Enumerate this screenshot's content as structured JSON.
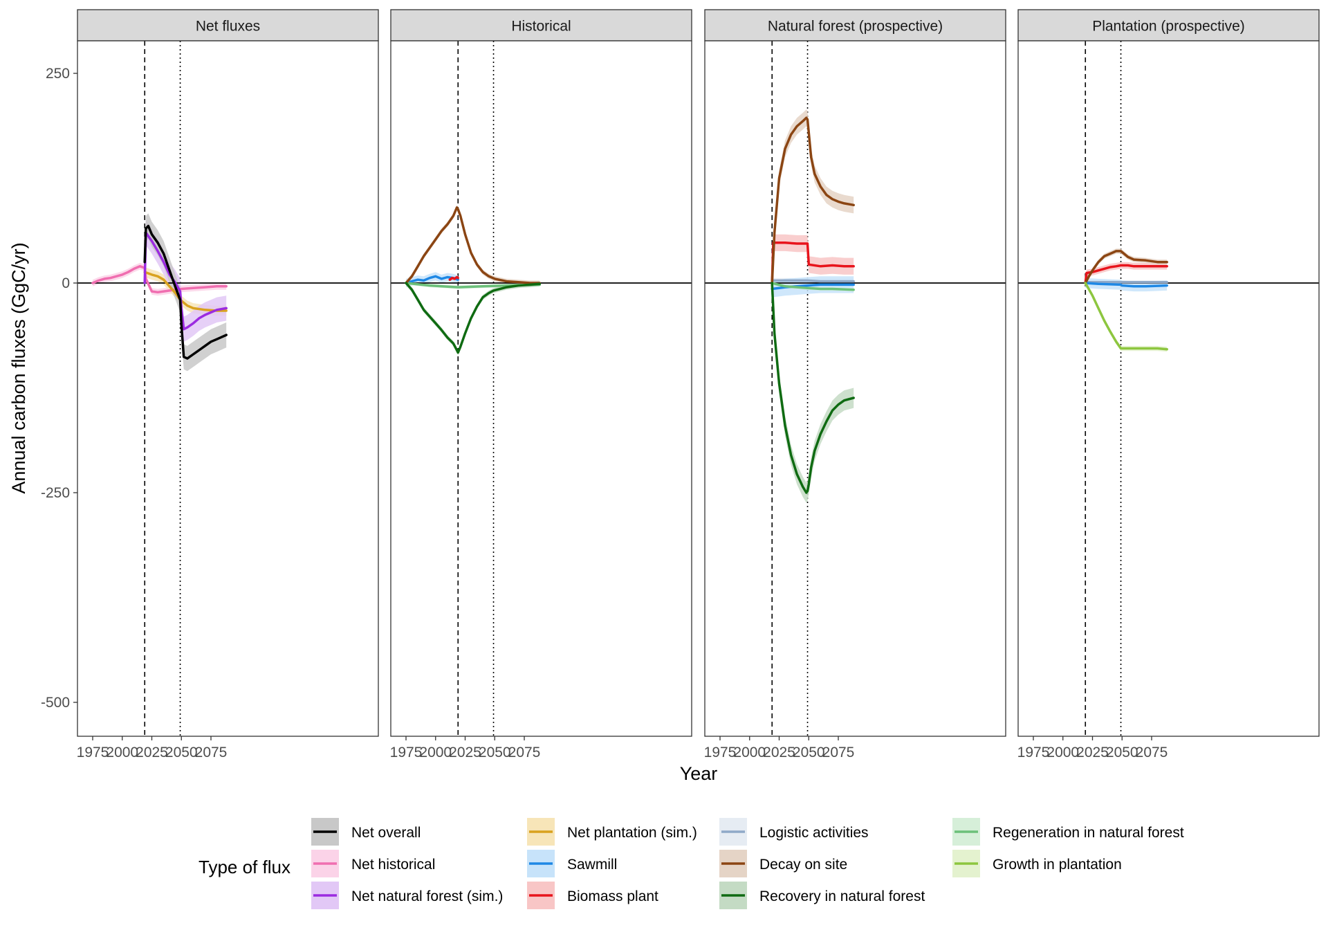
{
  "chart_data": {
    "type": "line",
    "xlabel": "Year",
    "ylabel": "Annual carbon fluxes (GgC/yr)",
    "xlim": [
      1970,
      2090
    ],
    "ylim": [
      -540,
      290
    ],
    "xticks": [
      1975,
      2000,
      2025,
      2050,
      2075
    ],
    "yticks": [
      250,
      0,
      -250,
      -500
    ],
    "ytick_labels": [
      "250",
      "0",
      "-250",
      "-500"
    ],
    "reference_lines": {
      "zero": 0,
      "dashed_year": 2019,
      "dotted_year": 2049
    },
    "legend": {
      "title": "Type of flux",
      "position": "bottom",
      "items": [
        {
          "key": "net_overall",
          "label": "Net overall",
          "color": "#000000",
          "fill": "#c8c8c8"
        },
        {
          "key": "net_historical",
          "label": "Net historical",
          "color": "#f06eb0",
          "fill": "#fbd3e8"
        },
        {
          "key": "net_natural",
          "label": "Net natural forest (sim.)",
          "color": "#9b2be0",
          "fill": "#e2c8f6"
        },
        {
          "key": "net_plantation",
          "label": "Net plantation (sim.)",
          "color": "#d9a21e",
          "fill": "#f7e5b8"
        },
        {
          "key": "sawmill",
          "label": "Sawmill",
          "color": "#1e88e5",
          "fill": "#c7e3fa"
        },
        {
          "key": "biomass",
          "label": "Biomass plant",
          "color": "#e8141c",
          "fill": "#f8c6c6"
        },
        {
          "key": "logistic",
          "label": "Logistic activities",
          "color": "#8fa9c8",
          "fill": "#e6ecf3"
        },
        {
          "key": "decay",
          "label": "Decay on site",
          "color": "#8b4513",
          "fill": "#e5d4c6"
        },
        {
          "key": "recovery",
          "label": "Recovery in natural forest",
          "color": "#0f6b12",
          "fill": "#c4dbc4"
        },
        {
          "key": "regeneration",
          "label": "Regeneration in natural forest",
          "color": "#6cc07a",
          "fill": "#d6efd9"
        },
        {
          "key": "growth",
          "label": "Growth in plantation",
          "color": "#8dc63f",
          "fill": "#e4f2cf"
        }
      ]
    },
    "panels": [
      {
        "title": "Net fluxes",
        "series": [
          {
            "key": "net_historical",
            "name": "Net historical",
            "x": [
              1975,
              1980,
              1985,
              1990,
              1995,
              2000,
              2005,
              2010,
              2015,
              2019,
              2020,
              2025,
              2030,
              2035,
              2040,
              2045,
              2050,
              2060,
              2070,
              2080,
              2088
            ],
            "y": [
              0,
              3,
              5,
              6,
              8,
              10,
              13,
              17,
              20,
              18,
              5,
              -10,
              -11,
              -10,
              -9,
              -8,
              -7,
              -6,
              -5,
              -4,
              -4
            ],
            "band": 4
          },
          {
            "key": "net_plantation",
            "name": "Net plantation (sim.)",
            "x": [
              2019,
              2025,
              2030,
              2035,
              2040,
              2045,
              2049,
              2055,
              2060,
              2070,
              2080,
              2088
            ],
            "y": [
              13,
              10,
              8,
              4,
              -4,
              -12,
              -20,
              -27,
              -30,
              -32,
              -33,
              -33
            ],
            "band": 6
          },
          {
            "key": "net_natural",
            "name": "Net natural forest (sim.)",
            "x": [
              2019,
              2020,
              2025,
              2030,
              2035,
              2040,
              2045,
              2049,
              2050,
              2052,
              2055,
              2060,
              2065,
              2070,
              2075,
              2080,
              2088
            ],
            "y": [
              0,
              60,
              50,
              38,
              25,
              10,
              0,
              -10,
              -30,
              -55,
              -53,
              -48,
              -42,
              -38,
              -35,
              -32,
              -30
            ],
            "band": 15
          },
          {
            "key": "net_overall",
            "name": "Net overall",
            "x": [
              2019,
              2020,
              2022,
              2025,
              2030,
              2035,
              2040,
              2045,
              2049,
              2050,
              2052,
              2055,
              2060,
              2065,
              2070,
              2075,
              2080,
              2088
            ],
            "y": [
              25,
              65,
              68,
              58,
              48,
              35,
              15,
              -5,
              -20,
              -50,
              -88,
              -90,
              -85,
              -80,
              -75,
              -70,
              -67,
              -62
            ],
            "band": 15
          }
        ]
      },
      {
        "title": "Historical",
        "series": [
          {
            "key": "sawmill",
            "name": "Sawmill",
            "x": [
              1975,
              1980,
              1985,
              1990,
              1995,
              2000,
              2005,
              2010,
              2015,
              2019
            ],
            "y": [
              0,
              2,
              4,
              3,
              6,
              8,
              5,
              7,
              6,
              4
            ],
            "band": 5
          },
          {
            "key": "biomass",
            "name": "Biomass plant",
            "x": [
              2012,
              2014,
              2016,
              2018,
              2019
            ],
            "y": [
              4,
              6,
              5,
              7,
              6
            ],
            "band": 2
          },
          {
            "key": "regeneration",
            "name": "Regeneration in natural forest",
            "x": [
              1975,
              1995,
              2019,
              2040,
              2060,
              2088
            ],
            "y": [
              0,
              -3,
              -5,
              -4,
              -3,
              -2
            ],
            "band": 2
          },
          {
            "key": "decay",
            "name": "Decay on site",
            "x": [
              1975,
              1980,
              1985,
              1990,
              1995,
              2000,
              2005,
              2010,
              2015,
              2018,
              2019,
              2021,
              2025,
              2030,
              2035,
              2040,
              2045,
              2050,
              2060,
              2070,
              2080,
              2088
            ],
            "y": [
              0,
              8,
              20,
              32,
              42,
              52,
              62,
              70,
              80,
              90,
              88,
              80,
              58,
              36,
              22,
              13,
              8,
              5,
              2,
              1,
              0,
              0
            ],
            "band": 3
          },
          {
            "key": "recovery",
            "name": "Recovery in natural forest",
            "x": [
              1975,
              1980,
              1985,
              1990,
              1995,
              2000,
              2005,
              2010,
              2015,
              2018,
              2019,
              2021,
              2025,
              2030,
              2035,
              2040,
              2045,
              2049,
              2060,
              2070,
              2080,
              2088
            ],
            "y": [
              0,
              -8,
              -20,
              -32,
              -40,
              -48,
              -56,
              -65,
              -72,
              -80,
              -83,
              -76,
              -60,
              -42,
              -28,
              -17,
              -12,
              -9,
              -5,
              -3,
              -2,
              -1
            ],
            "band": 3
          }
        ]
      },
      {
        "title": "Natural forest (prospective)",
        "series": [
          {
            "key": "logistic",
            "name": "Logistic activities",
            "x": [
              2019,
              2030,
              2049,
              2060,
              2088
            ],
            "y": [
              3,
              3,
              3,
              2,
              2
            ],
            "band": 3
          },
          {
            "key": "sawmill",
            "name": "Sawmill",
            "x": [
              2019,
              2025,
              2030,
              2040,
              2049,
              2060,
              2070,
              2088
            ],
            "y": [
              -7,
              -6,
              -5,
              -4,
              -3,
              -2,
              -2,
              -2
            ],
            "band": 10
          },
          {
            "key": "regeneration",
            "name": "Regeneration in natural forest",
            "x": [
              2019,
              2030,
              2049,
              2060,
              2070,
              2088
            ],
            "y": [
              0,
              -4,
              -6,
              -7,
              -7,
              -8
            ],
            "band": 2
          },
          {
            "key": "biomass",
            "name": "Biomass plant",
            "x": [
              2019,
              2020,
              2030,
              2040,
              2048,
              2049,
              2050,
              2060,
              2070,
              2080,
              2088
            ],
            "y": [
              0,
              48,
              48,
              47,
              47,
              47,
              22,
              20,
              21,
              20,
              20
            ],
            "band": 10
          },
          {
            "key": "decay",
            "name": "Decay on site",
            "x": [
              2019,
              2021,
              2025,
              2030,
              2035,
              2040,
              2045,
              2048,
              2049,
              2052,
              2055,
              2060,
              2065,
              2070,
              2075,
              2080,
              2088
            ],
            "y": [
              0,
              60,
              125,
              160,
              177,
              187,
              193,
              197,
              195,
              150,
              130,
              115,
              105,
              100,
              97,
              95,
              93
            ],
            "band": 10
          },
          {
            "key": "recovery",
            "name": "Recovery in natural forest",
            "x": [
              2019,
              2021,
              2025,
              2030,
              2035,
              2040,
              2045,
              2048,
              2049,
              2050,
              2052,
              2055,
              2060,
              2065,
              2070,
              2075,
              2080,
              2088
            ],
            "y": [
              0,
              -60,
              -120,
              -170,
              -205,
              -228,
              -243,
              -250,
              -248,
              -240,
              -220,
              -200,
              -180,
              -165,
              -152,
              -145,
              -140,
              -137
            ],
            "band": 12
          }
        ]
      },
      {
        "title": "Plantation (prospective)",
        "series": [
          {
            "key": "logistic",
            "name": "Logistic activities",
            "x": [
              2019,
              2049,
              2088
            ],
            "y": [
              1,
              1,
              1
            ],
            "band": 2
          },
          {
            "key": "sawmill",
            "name": "Sawmill",
            "x": [
              2019,
              2030,
              2049,
              2050,
              2060,
              2070,
              2088
            ],
            "y": [
              0,
              -1,
              -2,
              -3,
              -4,
              -4,
              -3
            ],
            "band": 6
          },
          {
            "key": "biomass",
            "name": "Biomass plant",
            "x": [
              2019,
              2020,
              2025,
              2030,
              2035,
              2040,
              2045,
              2049,
              2055,
              2060,
              2070,
              2080,
              2088
            ],
            "y": [
              0,
              12,
              13,
              15,
              17,
              19,
              20,
              21,
              21,
              20,
              20,
              20,
              20
            ],
            "band": 4
          },
          {
            "key": "decay",
            "name": "Decay on site",
            "x": [
              2019,
              2022,
              2025,
              2030,
              2035,
              2040,
              2045,
              2049,
              2055,
              2060,
              2070,
              2080,
              2088
            ],
            "y": [
              0,
              8,
              15,
              25,
              32,
              35,
              38,
              38,
              31,
              28,
              27,
              25,
              25
            ],
            "band": 3
          },
          {
            "key": "growth",
            "name": "Growth in plantation",
            "x": [
              2019,
              2025,
              2030,
              2035,
              2040,
              2045,
              2049,
              2060,
              2070,
              2080,
              2088
            ],
            "y": [
              0,
              -15,
              -30,
              -45,
              -58,
              -70,
              -78,
              -78,
              -78,
              -78,
              -79
            ],
            "band": 3
          }
        ]
      }
    ]
  }
}
